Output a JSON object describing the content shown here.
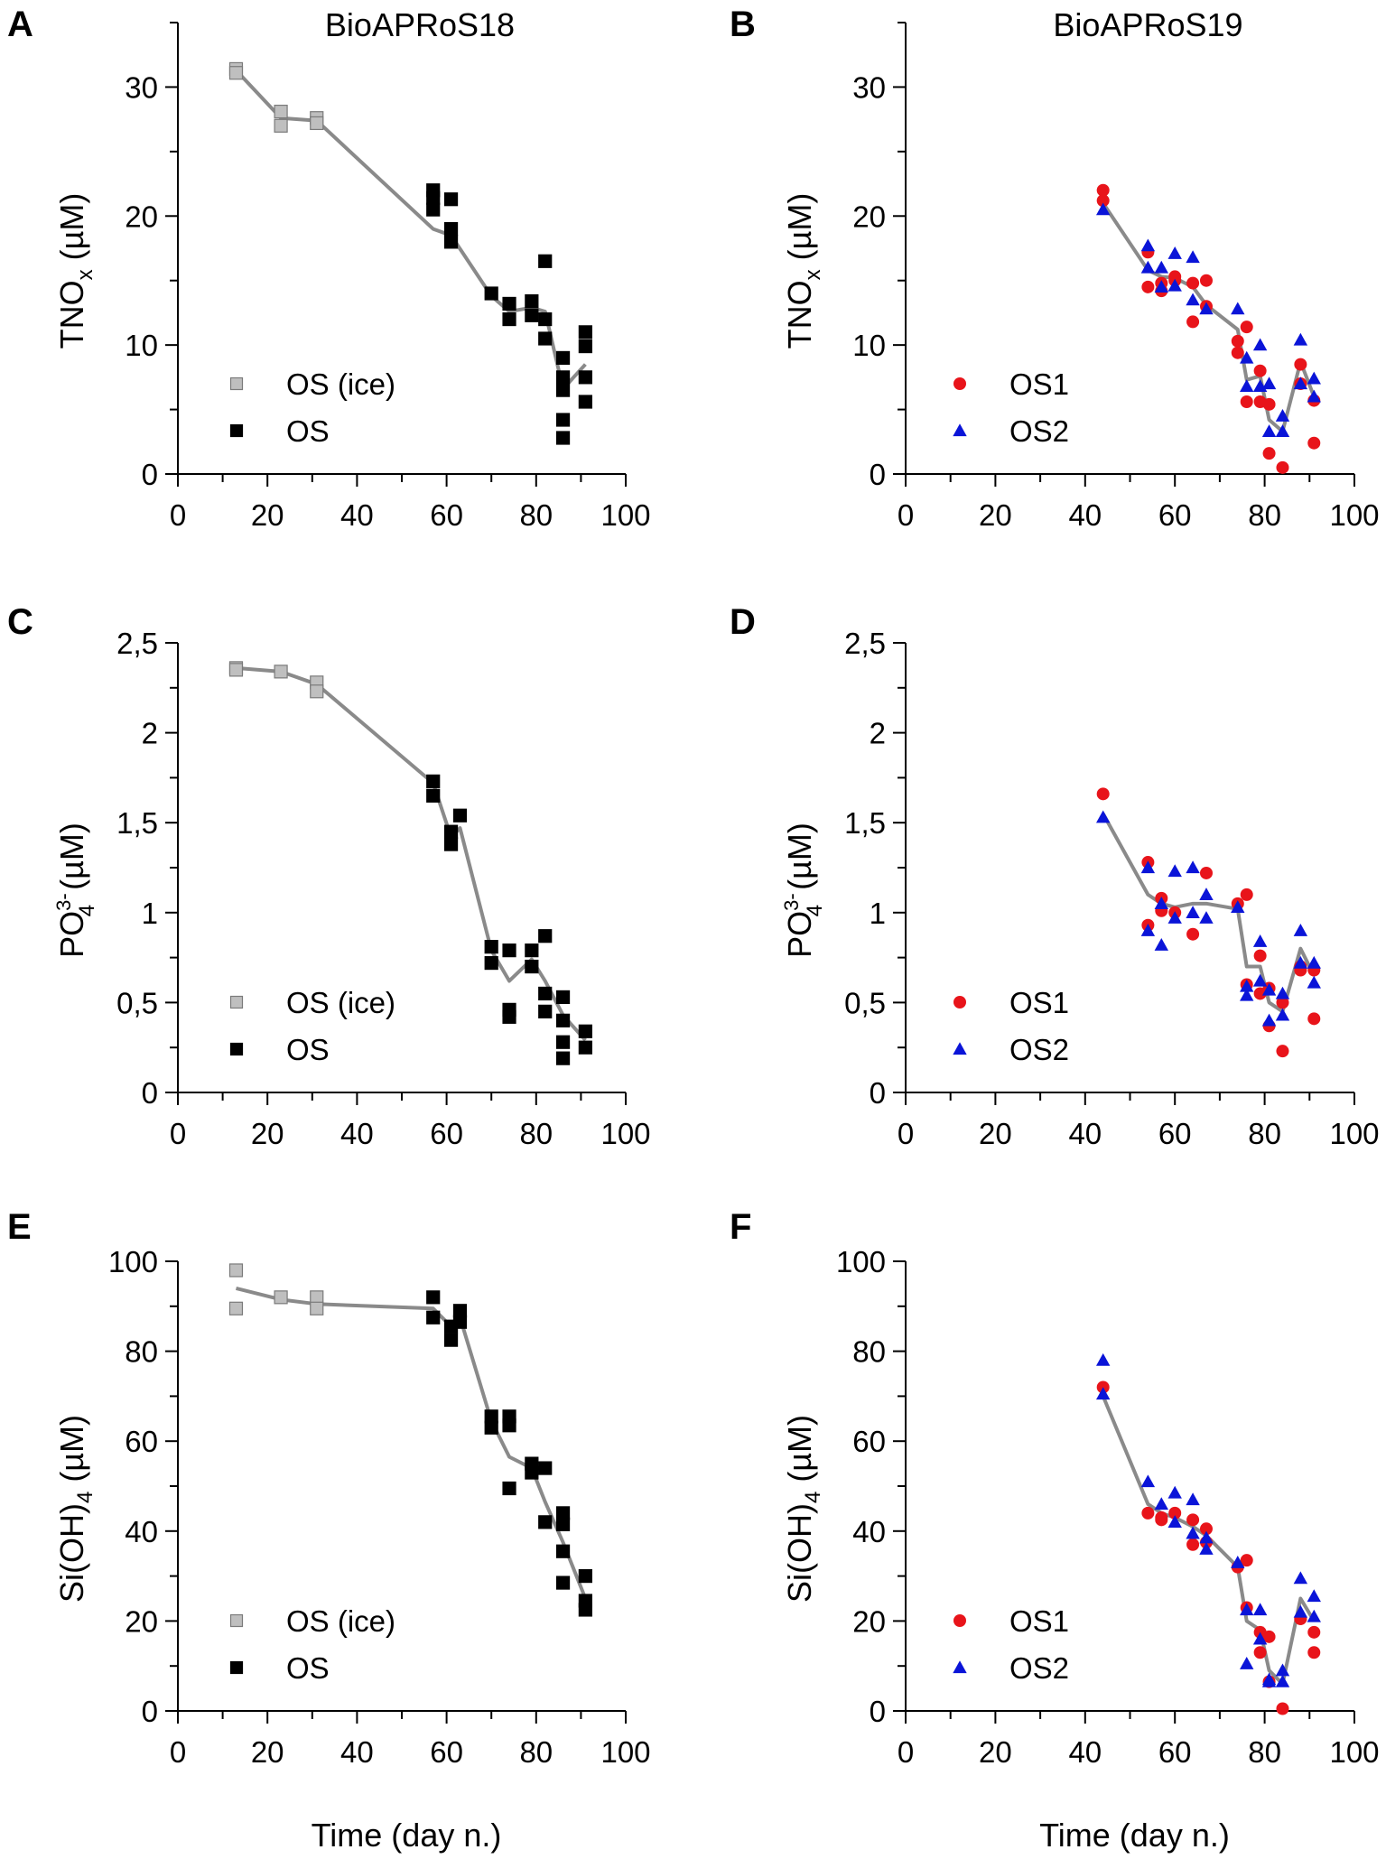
{
  "chart_data": [
    {
      "panel": "A",
      "type": "scatter",
      "title": "BioAPRoS18",
      "ylabel_html": "TNO<sub>x</sub> (µM)",
      "ylabel_base": "TNO",
      "ylabel_sub": "x",
      "ylabel_sup": "",
      "ylabel_tail": " (µM)",
      "xlabel": "",
      "xlim": [
        0,
        100
      ],
      "ylim": [
        0,
        35
      ],
      "xticks": [
        "0",
        "20",
        "40",
        "60",
        "80",
        "100"
      ],
      "yticks": [
        "0",
        "10",
        "20",
        "30"
      ],
      "ytick_values": [
        0,
        10,
        20,
        30
      ],
      "legend": [
        "OS (ice)",
        "OS"
      ],
      "series": [
        {
          "name": "OS (ice)",
          "marker": "square",
          "color": "#bfbfbf",
          "x": [
            13,
            13,
            23,
            23,
            31,
            31
          ],
          "y": [
            31.4,
            31.1,
            28.1,
            27.0,
            27.6,
            27.2
          ]
        },
        {
          "name": "OS",
          "marker": "square",
          "color": "#000000",
          "x": [
            57,
            57,
            57,
            61,
            61,
            61,
            70,
            74,
            74,
            79,
            79,
            82,
            82,
            82,
            86,
            86,
            86,
            86,
            86,
            91,
            91,
            91,
            91
          ],
          "y": [
            22.0,
            21.4,
            20.5,
            21.3,
            19.0,
            18.0,
            14.0,
            13.2,
            12.0,
            13.4,
            12.3,
            16.5,
            12.0,
            10.5,
            9.0,
            7.5,
            6.5,
            4.2,
            2.8,
            11.0,
            9.9,
            7.5,
            5.6
          ]
        }
      ],
      "trend": {
        "x": [
          13,
          23,
          31,
          57,
          61,
          70,
          74,
          79,
          82,
          86,
          91
        ],
        "y": [
          31.3,
          27.6,
          27.4,
          19.0,
          18.5,
          13.8,
          12.6,
          12.9,
          12.6,
          6.6,
          8.5
        ]
      }
    },
    {
      "panel": "B",
      "type": "scatter",
      "title": "BioAPRoS19",
      "ylabel_html": "TNO<sub>x</sub> (µM)",
      "ylabel_base": "TNO",
      "ylabel_sub": "x",
      "ylabel_sup": "",
      "ylabel_tail": " (µM)",
      "xlabel": "",
      "xlim": [
        0,
        100
      ],
      "ylim": [
        0,
        35
      ],
      "xticks": [
        "0",
        "20",
        "40",
        "60",
        "80",
        "100"
      ],
      "yticks": [
        "0",
        "10",
        "20",
        "30"
      ],
      "ytick_values": [
        0,
        10,
        20,
        30
      ],
      "legend": [
        "OS1",
        "OS2"
      ],
      "series": [
        {
          "name": "OS1",
          "marker": "circle",
          "color": "#e8141a",
          "x": [
            44,
            44,
            54,
            54,
            57,
            57,
            60,
            60,
            64,
            64,
            67,
            67,
            74,
            74,
            76,
            76,
            79,
            79,
            81,
            81,
            84,
            88,
            88,
            91,
            91
          ],
          "y": [
            22.0,
            21.2,
            17.2,
            14.5,
            14.8,
            14.2,
            15.0,
            15.3,
            14.8,
            11.8,
            15.0,
            13.0,
            10.3,
            9.4,
            11.4,
            5.6,
            8.0,
            5.6,
            5.4,
            1.6,
            0.5,
            8.5,
            7.0,
            5.7,
            2.4
          ]
        },
        {
          "name": "OS2",
          "marker": "triangle",
          "color": "#0a14d8",
          "x": [
            44,
            54,
            54,
            57,
            57,
            60,
            60,
            64,
            64,
            67,
            74,
            76,
            76,
            79,
            79,
            81,
            81,
            84,
            84,
            88,
            88,
            91,
            91
          ],
          "y": [
            20.5,
            17.7,
            16.0,
            16.0,
            14.5,
            17.1,
            14.6,
            16.8,
            13.5,
            12.8,
            12.8,
            9.0,
            6.8,
            10.0,
            6.8,
            7.0,
            3.3,
            4.5,
            3.3,
            10.4,
            7.0,
            7.4,
            6.0
          ]
        }
      ],
      "trend": {
        "x": [
          44,
          54,
          57,
          60,
          64,
          67,
          74,
          76,
          79,
          81,
          84,
          88,
          91
        ],
        "y": [
          21.0,
          15.8,
          15.3,
          15.2,
          14.5,
          13.1,
          11.2,
          7.3,
          7.6,
          4.2,
          3.3,
          8.7,
          6.0
        ]
      }
    },
    {
      "panel": "C",
      "type": "scatter",
      "title": "",
      "ylabel_html": "PO<sub>4</sub><sup>3-</sup> (µM)",
      "ylabel_base": "PO",
      "ylabel_sub": "4",
      "ylabel_sup": "3-",
      "ylabel_tail": " (µM)",
      "xlabel": "",
      "xlim": [
        0,
        100
      ],
      "ylim": [
        0,
        2.5
      ],
      "xticks": [
        "0",
        "20",
        "40",
        "60",
        "80",
        "100"
      ],
      "yticks": [
        "0",
        "0,5",
        "1",
        "1,5",
        "2",
        "2,5"
      ],
      "ytick_values": [
        0,
        0.5,
        1,
        1.5,
        2,
        2.5
      ],
      "legend": [
        "OS (ice)",
        "OS"
      ],
      "series": [
        {
          "name": "OS (ice)",
          "marker": "square",
          "color": "#bfbfbf",
          "x": [
            13,
            13,
            23,
            31,
            31
          ],
          "y": [
            2.36,
            2.35,
            2.34,
            2.28,
            2.23
          ]
        },
        {
          "name": "OS",
          "marker": "square",
          "color": "#000000",
          "x": [
            57,
            57,
            61,
            61,
            63,
            70,
            70,
            74,
            74,
            74,
            79,
            79,
            82,
            82,
            82,
            86,
            86,
            86,
            86,
            91,
            91
          ],
          "y": [
            1.73,
            1.65,
            1.45,
            1.38,
            1.54,
            0.81,
            0.72,
            0.79,
            0.46,
            0.42,
            0.79,
            0.7,
            0.87,
            0.55,
            0.45,
            0.53,
            0.4,
            0.28,
            0.19,
            0.34,
            0.25
          ]
        }
      ],
      "trend": {
        "x": [
          13,
          23,
          31,
          57,
          61,
          63,
          70,
          74,
          79,
          82,
          86,
          91
        ],
        "y": [
          2.36,
          2.34,
          2.27,
          1.72,
          1.42,
          1.47,
          0.79,
          0.62,
          0.74,
          0.62,
          0.43,
          0.29
        ]
      }
    },
    {
      "panel": "D",
      "type": "scatter",
      "title": "",
      "ylabel_html": "PO<sub>4</sub><sup>3-</sup> (µM)",
      "ylabel_base": "PO",
      "ylabel_sub": "4",
      "ylabel_sup": "3-",
      "ylabel_tail": " (µM)",
      "xlabel": "",
      "xlim": [
        0,
        100
      ],
      "ylim": [
        0,
        2.5
      ],
      "xticks": [
        "0",
        "20",
        "40",
        "60",
        "80",
        "100"
      ],
      "yticks": [
        "0",
        "0,5",
        "1",
        "1,5",
        "2",
        "2,5"
      ],
      "ytick_values": [
        0,
        0.5,
        1,
        1.5,
        2,
        2.5
      ],
      "legend": [
        "OS1",
        "OS2"
      ],
      "series": [
        {
          "name": "OS1",
          "marker": "circle",
          "color": "#e8141a",
          "x": [
            44,
            54,
            54,
            57,
            57,
            60,
            64,
            67,
            74,
            76,
            76,
            79,
            79,
            81,
            81,
            84,
            84,
            88,
            88,
            91,
            91
          ],
          "y": [
            1.66,
            1.28,
            0.93,
            1.08,
            1.01,
            1.0,
            0.88,
            1.22,
            1.05,
            1.1,
            0.6,
            0.76,
            0.55,
            0.58,
            0.37,
            0.5,
            0.23,
            0.7,
            0.68,
            0.68,
            0.41
          ]
        },
        {
          "name": "OS2",
          "marker": "triangle",
          "color": "#0a14d8",
          "x": [
            44,
            54,
            54,
            57,
            57,
            60,
            60,
            64,
            64,
            67,
            67,
            74,
            76,
            76,
            79,
            79,
            81,
            81,
            84,
            84,
            88,
            88,
            91,
            91
          ],
          "y": [
            1.53,
            1.25,
            0.9,
            1.05,
            0.82,
            1.23,
            0.97,
            1.25,
            1.0,
            1.1,
            0.97,
            1.03,
            0.59,
            0.54,
            0.84,
            0.62,
            0.57,
            0.4,
            0.55,
            0.43,
            0.9,
            0.72,
            0.72,
            0.61
          ]
        }
      ],
      "trend": {
        "x": [
          44,
          54,
          57,
          60,
          64,
          67,
          74,
          76,
          79,
          81,
          84,
          88,
          91
        ],
        "y": [
          1.55,
          1.1,
          1.05,
          1.03,
          1.05,
          1.05,
          1.02,
          0.7,
          0.7,
          0.5,
          0.45,
          0.8,
          0.65
        ]
      }
    },
    {
      "panel": "E",
      "type": "scatter",
      "title": "",
      "ylabel_html": "Si(OH)<sub>4</sub> (µM)",
      "ylabel_base": "Si(OH)",
      "ylabel_sub": "4",
      "ylabel_sup": "",
      "ylabel_tail": " (µM)",
      "xlabel": "Time (day n.)",
      "xlim": [
        0,
        100
      ],
      "ylim": [
        0,
        100
      ],
      "xticks": [
        "0",
        "20",
        "40",
        "60",
        "80",
        "100"
      ],
      "yticks": [
        "0",
        "20",
        "40",
        "60",
        "80",
        "100"
      ],
      "ytick_values": [
        0,
        20,
        40,
        60,
        80,
        100
      ],
      "legend": [
        "OS (ice)",
        "OS"
      ],
      "series": [
        {
          "name": "OS (ice)",
          "marker": "square",
          "color": "#bfbfbf",
          "x": [
            13,
            13,
            23,
            31,
            31
          ],
          "y": [
            98.0,
            89.5,
            92.0,
            92.0,
            89.5
          ]
        },
        {
          "name": "OS",
          "marker": "square",
          "color": "#000000",
          "x": [
            57,
            57,
            61,
            61,
            63,
            63,
            70,
            70,
            74,
            74,
            74,
            79,
            79,
            82,
            82,
            86,
            86,
            86,
            86,
            91,
            91,
            91
          ],
          "y": [
            92.0,
            87.5,
            85.5,
            82.5,
            89.0,
            86.5,
            65.5,
            63.0,
            65.5,
            63.5,
            49.5,
            55.0,
            53.0,
            54.0,
            42.0,
            44.0,
            41.5,
            35.5,
            28.5,
            30.0,
            24.5,
            22.5
          ]
        }
      ],
      "trend": {
        "x": [
          13,
          23,
          31,
          57,
          61,
          63,
          70,
          74,
          79,
          82,
          86,
          91
        ],
        "y": [
          94.0,
          91.5,
          90.5,
          89.5,
          85.5,
          87.5,
          64.5,
          56.5,
          54.0,
          46.5,
          37.5,
          25.0
        ]
      }
    },
    {
      "panel": "F",
      "type": "scatter",
      "title": "",
      "ylabel_html": "Si(OH)<sub>4</sub> (µM)",
      "ylabel_base": "Si(OH)",
      "ylabel_sub": "4",
      "ylabel_sup": "",
      "ylabel_tail": " (µM)",
      "xlabel": "Time (day n.)",
      "xlim": [
        0,
        100
      ],
      "ylim": [
        0,
        100
      ],
      "xticks": [
        "0",
        "20",
        "40",
        "60",
        "80",
        "100"
      ],
      "yticks": [
        "0",
        "20",
        "40",
        "60",
        "80",
        "100"
      ],
      "ytick_values": [
        0,
        20,
        40,
        60,
        80,
        100
      ],
      "legend": [
        "OS1",
        "OS2"
      ],
      "series": [
        {
          "name": "OS1",
          "marker": "circle",
          "color": "#e8141a",
          "x": [
            44,
            54,
            57,
            57,
            60,
            64,
            64,
            67,
            67,
            74,
            76,
            76,
            79,
            79,
            81,
            81,
            84,
            88,
            88,
            91,
            91
          ],
          "y": [
            72.0,
            44.0,
            43.0,
            42.5,
            44.0,
            42.5,
            37.0,
            40.5,
            37.5,
            32.0,
            33.5,
            23.0,
            17.5,
            13.0,
            16.5,
            6.5,
            0.5,
            20.5,
            20.5,
            17.5,
            13.0
          ]
        },
        {
          "name": "OS2",
          "marker": "triangle",
          "color": "#0a14d8",
          "x": [
            44,
            44,
            54,
            57,
            60,
            60,
            64,
            64,
            67,
            67,
            74,
            76,
            76,
            79,
            79,
            81,
            81,
            84,
            84,
            88,
            88,
            91,
            91
          ],
          "y": [
            78.0,
            70.5,
            51.0,
            46.0,
            48.5,
            42.0,
            47.0,
            39.5,
            38.5,
            36.0,
            33.0,
            22.5,
            10.5,
            22.5,
            16.0,
            7.0,
            6.5,
            9.0,
            6.5,
            29.5,
            22.0,
            25.5,
            21.0
          ]
        }
      ],
      "trend": {
        "x": [
          44,
          54,
          57,
          60,
          64,
          67,
          74,
          76,
          79,
          81,
          84,
          88,
          91
        ],
        "y": [
          70.0,
          46.0,
          44.0,
          43.0,
          41.0,
          39.0,
          32.0,
          20.0,
          18.0,
          9.0,
          6.0,
          25.0,
          20.0
        ]
      }
    }
  ]
}
